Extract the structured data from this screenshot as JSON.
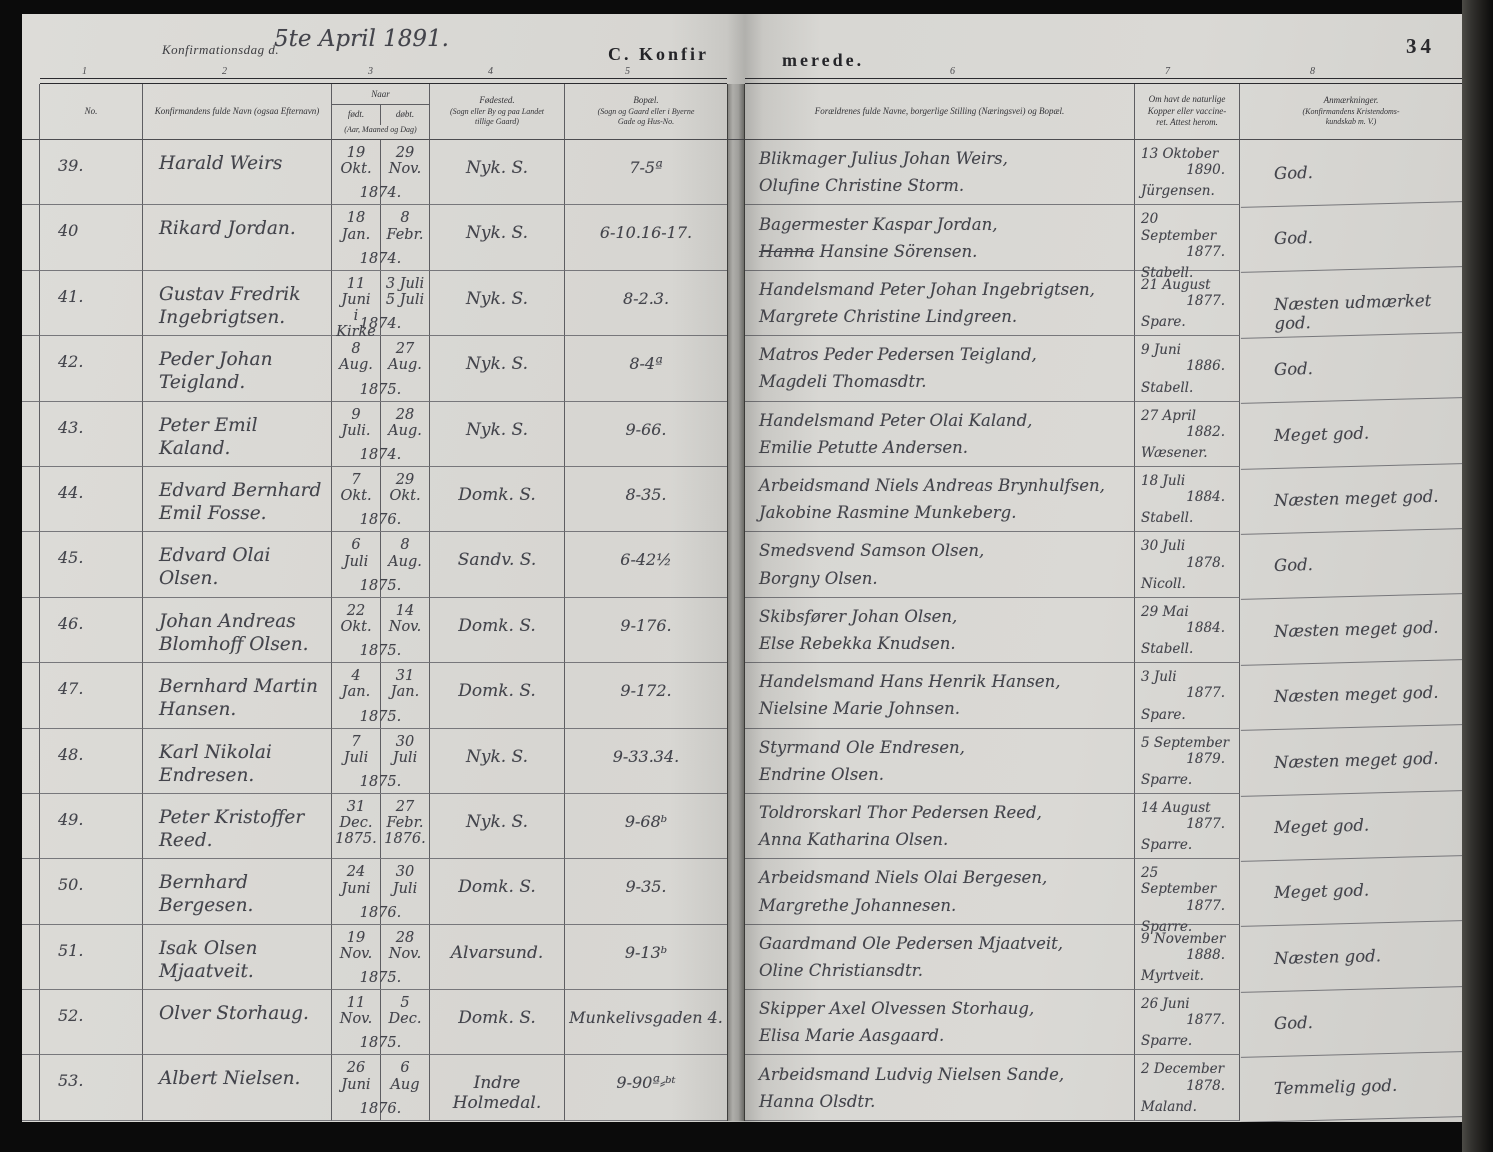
{
  "page": {
    "confirmation_day_label": "Konfirmationsdag d.",
    "confirmation_day_handwritten": "5te April 1891.",
    "section_title_left": "C. Konfir",
    "section_title_right": "merede.",
    "page_number": "34"
  },
  "colors": {
    "paper": "#d7d6d2",
    "ink": "#43444b",
    "print": "#2b2b2f",
    "background": "#0b0b0b"
  },
  "columns": {
    "numbers": [
      "1",
      "2",
      "3",
      "4",
      "5",
      "6",
      "7",
      "8"
    ],
    "no": "No.",
    "name": [
      "Konfirmandens fulde Navn (ogsaa Efternavn)"
    ],
    "date_group": "Naar",
    "date_born": "født.",
    "date_baptized": "døbt.",
    "date_note": "(Aar, Maaned og Dag)",
    "birthplace": [
      "Fødested.",
      "(Sogn eller By og paa Landet",
      "tillige Gaard)"
    ],
    "residence": [
      "Bopæl.",
      "(Sogn og Gaard eller i Byerne",
      "Gade og Hus-No."
    ],
    "parents": [
      "Forældrenes fulde Navne, borgerlige Stilling (Næringsvei) og Bopæl."
    ],
    "vaccination": [
      "Om havt de naturlige",
      "Kopper eller vaccine-",
      "ret.  Attest herom."
    ],
    "remarks": [
      "Anmærkninger.",
      "(Konfirmandens Kristendoms-",
      "kundskab m. V.)"
    ]
  },
  "rows": [
    {
      "no": "39.",
      "name1": "Harald Weirs",
      "name2": "",
      "born": [
        "19",
        "Okt."
      ],
      "bapt": [
        "29",
        "Nov."
      ],
      "year": "1874.",
      "birthplace": "Nyk. S.",
      "residence": "7-5ª",
      "parent1": "Blikmager Julius Johan Weirs,",
      "parent2_struck": "",
      "parent2": "Olufine Christine Storm.",
      "vacc": [
        "13 Oktober",
        "1890.",
        "Jürgensen."
      ],
      "remark": "God."
    },
    {
      "no": "40",
      "name1": "Rikard Jordan.",
      "name2": "",
      "born": [
        "18",
        "Jan."
      ],
      "bapt": [
        "8",
        "Febr."
      ],
      "year": "1874.",
      "birthplace": "Nyk. S.",
      "residence": "6-10.16-17.",
      "parent1": "Bagermester Kaspar Jordan,",
      "parent2_struck": "Hanna",
      "parent2": " Hansine Sörensen.",
      "vacc": [
        "20 September",
        "1877.",
        "Stabell."
      ],
      "remark": "God."
    },
    {
      "no": "41.",
      "name1": "Gustav Fredrik",
      "name2": "Ingebrigtsen.",
      "born": [
        "11",
        "Juni",
        "i Kirke"
      ],
      "bapt": [
        "3 Juli",
        "5 Juli"
      ],
      "year": "1874.",
      "birthplace": "Nyk. S.",
      "residence": "8-2.3.",
      "parent1": "Handelsmand Peter Johan Ingebrigtsen,",
      "parent2_struck": "",
      "parent2": "Margrete Christine Lindgreen.",
      "vacc": [
        "21 August",
        "1877.",
        "Spare."
      ],
      "remark": "Næsten udmærket god."
    },
    {
      "no": "42.",
      "name1": "Peder Johan Teigland.",
      "name2": "",
      "born": [
        "8",
        "Aug."
      ],
      "bapt": [
        "27",
        "Aug."
      ],
      "year": "1875.",
      "birthplace": "Nyk. S.",
      "residence": "8-4ª",
      "parent1": "Matros Peder Pedersen Teigland,",
      "parent2_struck": "",
      "parent2": "Magdeli Thomasdtr.",
      "vacc": [
        "9 Juni",
        "1886.",
        "Stabell."
      ],
      "remark": "God."
    },
    {
      "no": "43.",
      "name1": "Peter Emil Kaland.",
      "name2": "",
      "born": [
        "9",
        "Juli."
      ],
      "bapt": [
        "28",
        "Aug."
      ],
      "year": "1874.",
      "birthplace": "Nyk. S.",
      "residence": "9-66.",
      "parent1": "Handelsmand Peter Olai Kaland,",
      "parent2_struck": "",
      "parent2": "Emilie Petutte Andersen.",
      "vacc": [
        "27 April",
        "1882.",
        "Wæsener."
      ],
      "remark": "Meget god."
    },
    {
      "no": "44.",
      "name1": "Edvard Bernhard",
      "name2": "Emil Fosse.",
      "born": [
        "7",
        "Okt."
      ],
      "bapt": [
        "29",
        "Okt."
      ],
      "year": "1876.",
      "birthplace": "Domk. S.",
      "residence": "8-35.",
      "parent1": "Arbeidsmand Niels Andreas Brynhulfsen,",
      "parent2_struck": "",
      "parent2": "Jakobine Rasmine Munkeberg.",
      "vacc": [
        "18 Juli",
        "1884.",
        "Stabell."
      ],
      "remark": "Næsten meget god."
    },
    {
      "no": "45.",
      "name1": "Edvard Olai Olsen.",
      "name2": "",
      "born": [
        "6",
        "Juli"
      ],
      "bapt": [
        "8",
        "Aug."
      ],
      "year": "1875.",
      "birthplace": "Sandv. S.",
      "residence": "6-42½",
      "parent1": "Smedsvend Samson Olsen,",
      "parent2_struck": "",
      "parent2": "Borgny Olsen.",
      "vacc": [
        "30 Juli",
        "1878.",
        "Nicoll."
      ],
      "remark": "God."
    },
    {
      "no": "46.",
      "name1": "Johan Andreas",
      "name2": "Blomhoff Olsen.",
      "born": [
        "22",
        "Okt."
      ],
      "bapt": [
        "14",
        "Nov."
      ],
      "year": "1875.",
      "birthplace": "Domk. S.",
      "residence": "9-176.",
      "parent1": "Skibsfører Johan Olsen,",
      "parent2_struck": "",
      "parent2": "Else Rebekka Knudsen.",
      "vacc": [
        "29 Mai",
        "1884.",
        "Stabell."
      ],
      "remark": "Næsten meget god."
    },
    {
      "no": "47.",
      "name1": "Bernhard Martin Hansen.",
      "name2": "",
      "born": [
        "4",
        "Jan."
      ],
      "bapt": [
        "31",
        "Jan."
      ],
      "year": "1875.",
      "birthplace": "Domk. S.",
      "residence": "9-172.",
      "parent1": "Handelsmand Hans Henrik Hansen,",
      "parent2_struck": "",
      "parent2": "Nielsine Marie Johnsen.",
      "vacc": [
        "3 Juli",
        "1877.",
        "Spare."
      ],
      "remark": "Næsten meget god."
    },
    {
      "no": "48.",
      "name1": "Karl Nikolai Endresen.",
      "name2": "",
      "born": [
        "7",
        "Juli"
      ],
      "bapt": [
        "30",
        "Juli"
      ],
      "year": "1875.",
      "birthplace": "Nyk. S.",
      "residence": "9-33.34.",
      "parent1": "Styrmand Ole Endresen,",
      "parent2_struck": "",
      "parent2": "Endrine Olsen.",
      "vacc": [
        "5 September",
        "1879.",
        "Sparre."
      ],
      "remark": "Næsten meget god."
    },
    {
      "no": "49.",
      "name1": "Peter Kristoffer Reed.",
      "name2": "",
      "born": [
        "31",
        "Dec.",
        "1875."
      ],
      "bapt": [
        "27",
        "Febr.",
        "1876."
      ],
      "year": "",
      "birthplace": "Nyk. S.",
      "residence": "9-68ᵇ",
      "parent1": "Toldrorskarl Thor Pedersen Reed,",
      "parent2_struck": "",
      "parent2": "Anna Katharina Olsen.",
      "vacc": [
        "14 August",
        "1877.",
        "Sparre."
      ],
      "remark": "Meget god."
    },
    {
      "no": "50.",
      "name1": "Bernhard Bergesen.",
      "name2": "",
      "born": [
        "24",
        "Juni"
      ],
      "bapt": [
        "30",
        "Juli"
      ],
      "year": "1876.",
      "birthplace": "Domk. S.",
      "residence": "9-35.",
      "parent1": "Arbeidsmand Niels Olai Bergesen,",
      "parent2_struck": "",
      "parent2": "Margrethe Johannesen.",
      "vacc": [
        "25 September",
        "1877.",
        "Sparre."
      ],
      "remark": "Meget god."
    },
    {
      "no": "51.",
      "name1": "Isak Olsen Mjaatveit.",
      "name2": "",
      "born": [
        "19",
        "Nov."
      ],
      "bapt": [
        "28",
        "Nov."
      ],
      "year": "1875.",
      "birthplace": "Alvarsund.",
      "residence": "9-13ᵇ",
      "parent1": "Gaardmand Ole Pedersen Mjaatveit,",
      "parent2_struck": "",
      "parent2": "Oline Christiansdtr.",
      "vacc": [
        "9 November",
        "1888.",
        "Myrtveit."
      ],
      "remark": "Næsten god."
    },
    {
      "no": "52.",
      "name1": "Olver Storhaug.",
      "name2": "",
      "born": [
        "11",
        "Nov."
      ],
      "bapt": [
        "5",
        "Dec."
      ],
      "year": "1875.",
      "birthplace": "Domk. S.",
      "residence": "Munkelivsgaden 4.",
      "parent1": "Skipper Axel Olvessen Storhaug,",
      "parent2_struck": "",
      "parent2": "Elisa Marie Aasgaard.",
      "vacc": [
        "26 Juni",
        "1877.",
        "Sparre."
      ],
      "remark": "God."
    },
    {
      "no": "53.",
      "name1": "Albert Nielsen.",
      "name2": "",
      "born": [
        "26",
        "Juni"
      ],
      "bapt": [
        "6",
        "Aug"
      ],
      "year": "1876.",
      "birthplace": "Indre Holmedal.",
      "residence": "9-90ª⸗ᵇᵗ",
      "parent1": "Arbeidsmand Ludvig Nielsen Sande,",
      "parent2_struck": "",
      "parent2": "Hanna Olsdtr.",
      "vacc": [
        "2 December",
        "1878.",
        "Maland."
      ],
      "remark": "Temmelig god."
    }
  ]
}
